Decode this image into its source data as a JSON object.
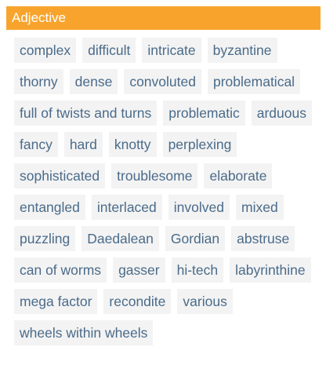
{
  "section": {
    "title": "Adjective",
    "words": [
      "complex",
      "difficult",
      "intricate",
      "byzantine",
      "thorny",
      "dense",
      "convoluted",
      "problematical",
      "full of twists and turns",
      "problematic",
      "arduous",
      "fancy",
      "hard",
      "knotty",
      "perplexing",
      "sophisticated",
      "troublesome",
      "elaborate",
      "entangled",
      "interlaced",
      "involved",
      "mixed",
      "puzzling",
      "Daedalean",
      "Gordian",
      "abstruse",
      "can of worms",
      "gasser",
      "hi-tech",
      "labyrinthine",
      "mega factor",
      "recondite",
      "various",
      "wheels within wheels"
    ]
  },
  "colors": {
    "header_bg": "#f8a42c",
    "header_text": "#ffffff",
    "chip_bg": "#f3f3f3",
    "chip_text": "#4a6b8a"
  }
}
